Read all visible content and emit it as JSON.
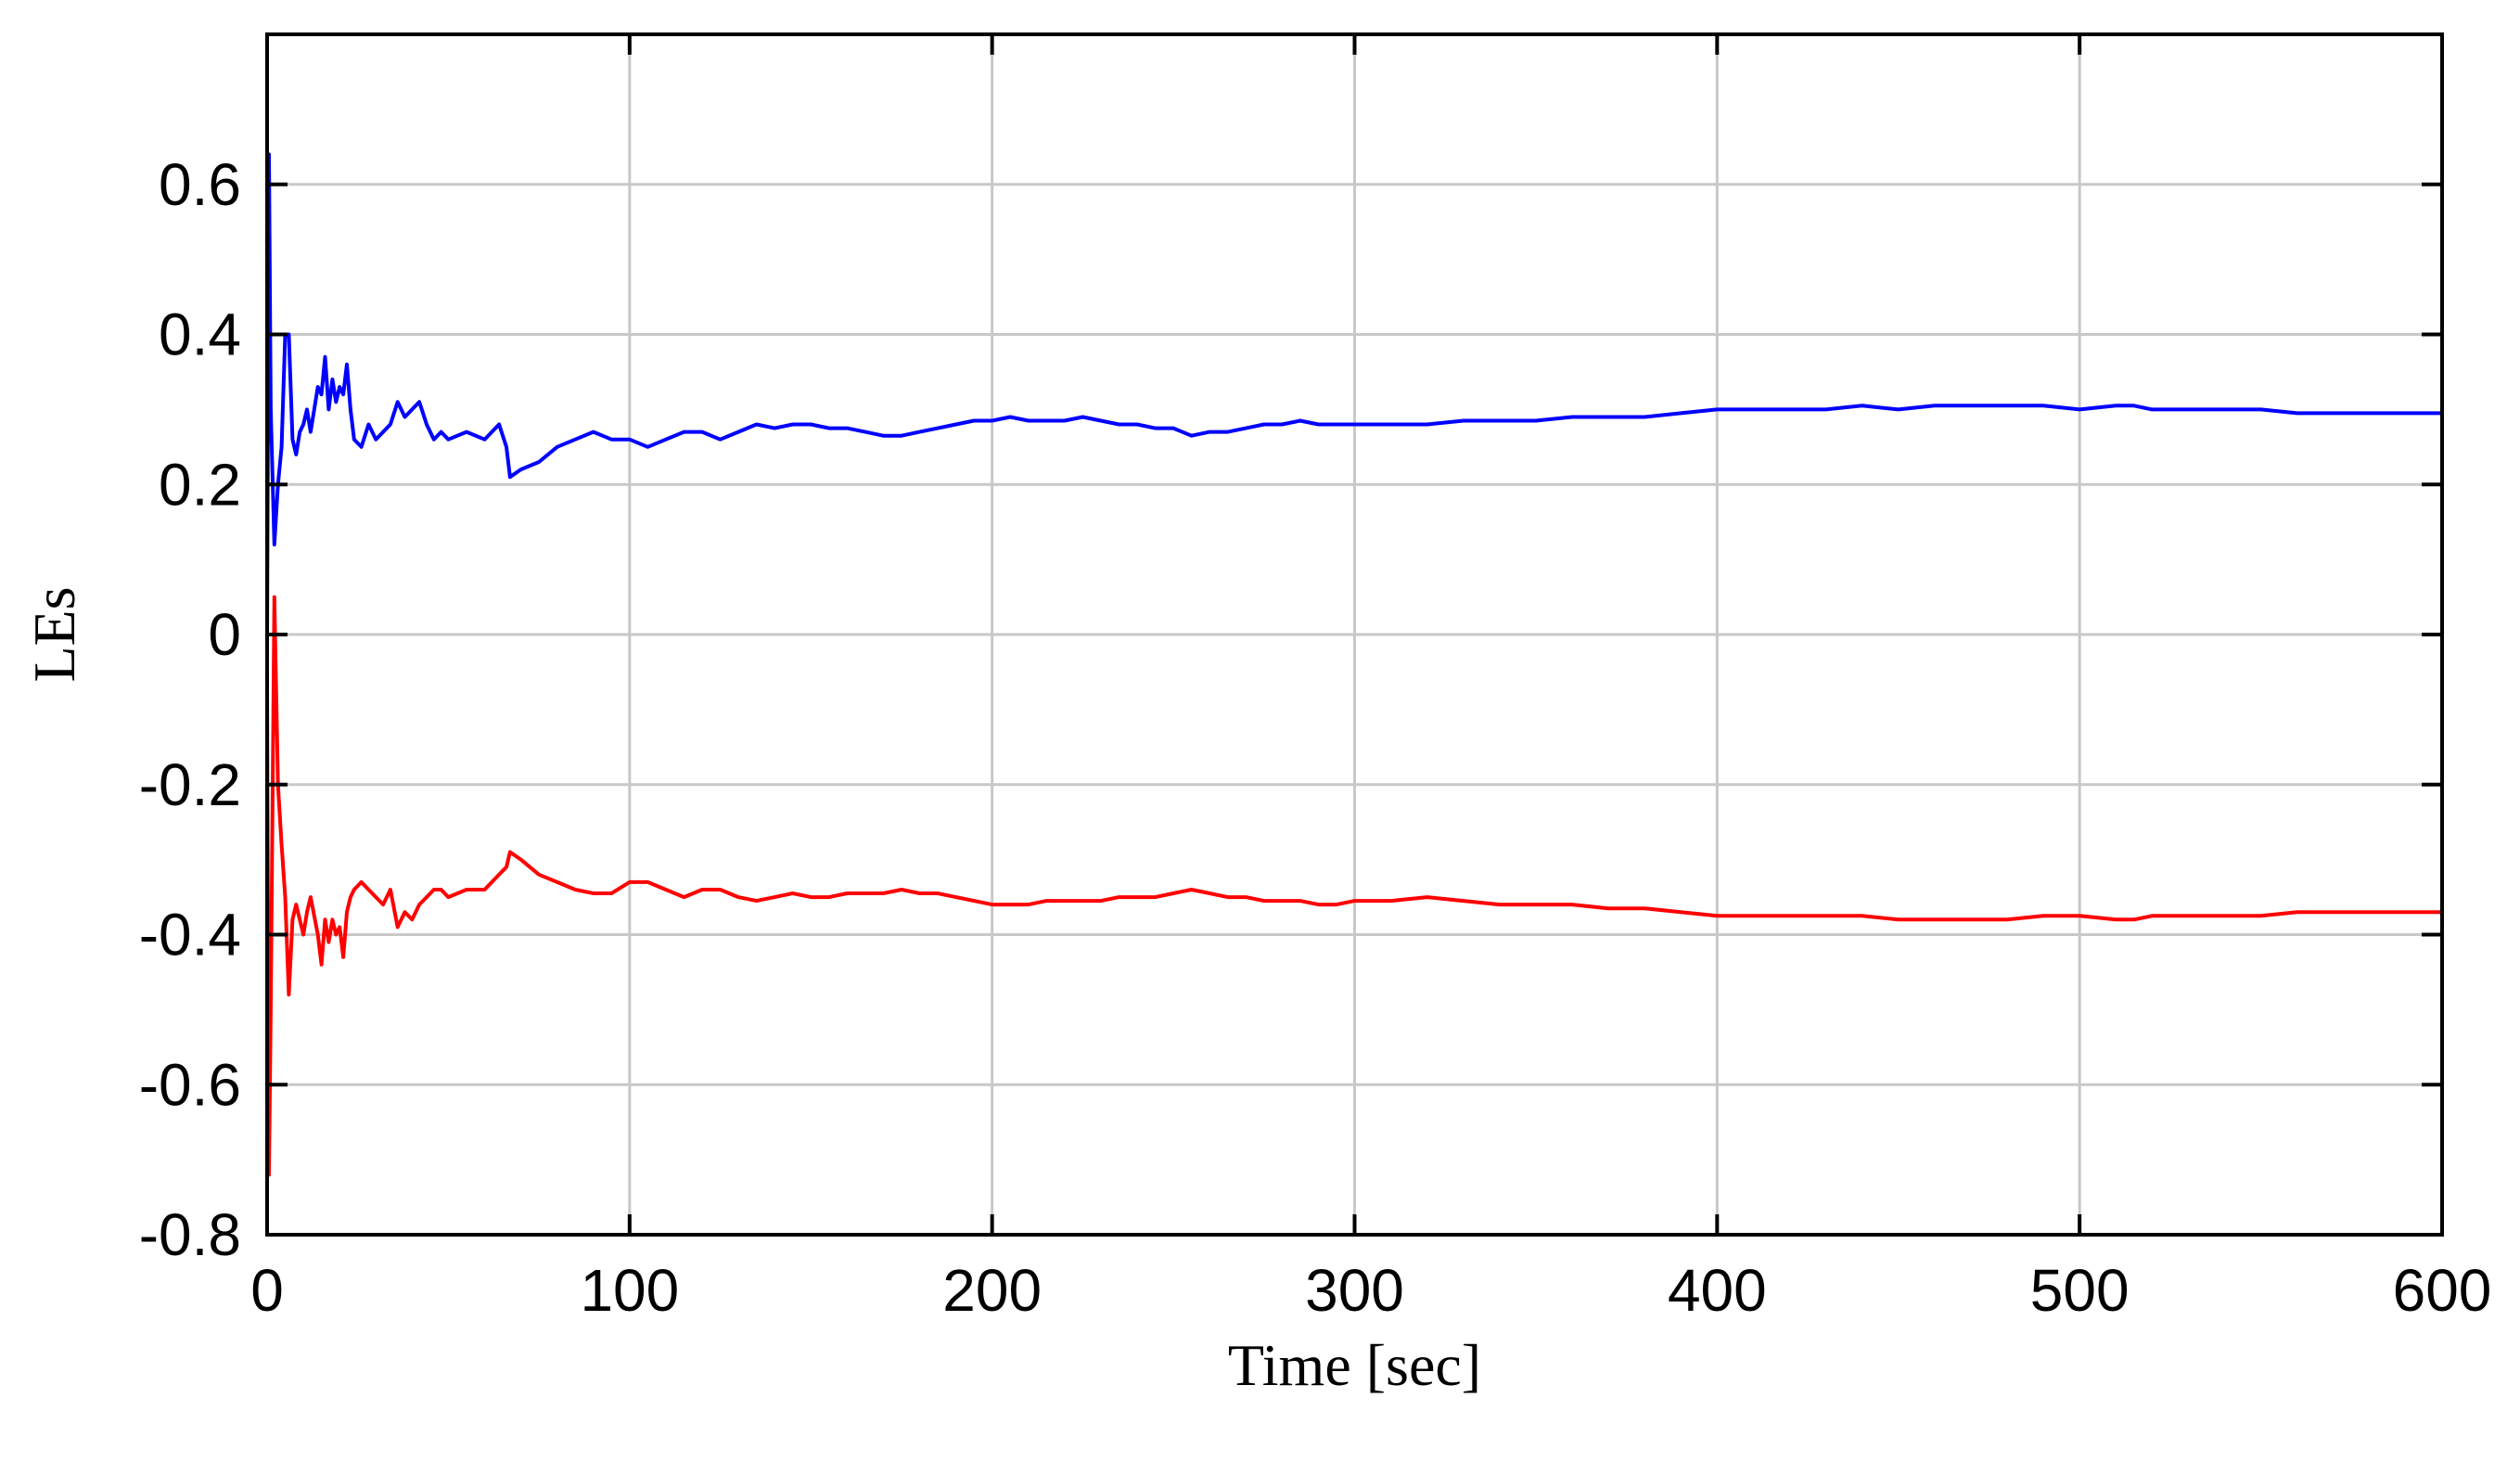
{
  "chart_data": {
    "type": "line",
    "title": "",
    "xlabel": "Time [sec]",
    "ylabel": "LEs",
    "xlim": [
      0,
      600
    ],
    "ylim": [
      -0.8,
      0.8
    ],
    "xticks": [
      0,
      100,
      200,
      300,
      400,
      500,
      600
    ],
    "xtick_labels": [
      "0",
      "100",
      "200",
      "300",
      "400",
      "500",
      "600"
    ],
    "yticks": [
      -0.8,
      -0.6,
      -0.4,
      -0.2,
      0,
      0.2,
      0.4,
      0.6
    ],
    "ytick_labels": [
      "-0.8",
      "-0.6",
      "-0.4",
      "-0.2",
      "0",
      "0.2",
      "0.4",
      "0.6"
    ],
    "grid": true,
    "legend": "none",
    "series": [
      {
        "color": "#0000ff",
        "x": [
          0,
          0.5,
          1,
          2,
          3,
          4,
          5,
          6,
          7,
          8,
          9,
          10,
          11,
          12,
          14,
          15,
          16,
          17,
          18,
          19,
          20,
          21,
          22,
          23,
          24,
          26,
          28,
          30,
          32,
          34,
          36,
          38,
          40,
          42,
          44,
          46,
          48,
          50,
          55,
          60,
          64,
          66,
          67,
          70,
          75,
          80,
          85,
          90,
          95,
          100,
          105,
          110,
          115,
          120,
          125,
          130,
          135,
          140,
          145,
          150,
          155,
          160,
          165,
          170,
          175,
          180,
          185,
          190,
          195,
          200,
          205,
          210,
          215,
          220,
          225,
          230,
          235,
          240,
          245,
          250,
          255,
          260,
          265,
          270,
          275,
          280,
          285,
          290,
          295,
          300,
          310,
          320,
          330,
          340,
          350,
          360,
          370,
          380,
          390,
          400,
          410,
          420,
          430,
          440,
          450,
          460,
          470,
          480,
          490,
          500,
          510,
          515,
          520,
          530,
          540,
          550,
          560,
          570,
          580,
          590,
          600
        ],
        "y": [
          0.0,
          0.64,
          0.3,
          0.12,
          0.2,
          0.25,
          0.4,
          0.4,
          0.26,
          0.24,
          0.27,
          0.28,
          0.3,
          0.27,
          0.33,
          0.32,
          0.37,
          0.3,
          0.34,
          0.31,
          0.33,
          0.32,
          0.36,
          0.3,
          0.26,
          0.25,
          0.28,
          0.26,
          0.27,
          0.28,
          0.31,
          0.29,
          0.3,
          0.31,
          0.28,
          0.26,
          0.27,
          0.26,
          0.27,
          0.26,
          0.28,
          0.25,
          0.21,
          0.22,
          0.23,
          0.25,
          0.26,
          0.27,
          0.26,
          0.26,
          0.25,
          0.26,
          0.27,
          0.27,
          0.26,
          0.27,
          0.28,
          0.275,
          0.28,
          0.28,
          0.275,
          0.275,
          0.27,
          0.265,
          0.265,
          0.27,
          0.275,
          0.28,
          0.285,
          0.285,
          0.29,
          0.285,
          0.285,
          0.285,
          0.29,
          0.285,
          0.28,
          0.28,
          0.275,
          0.275,
          0.265,
          0.27,
          0.27,
          0.275,
          0.28,
          0.28,
          0.285,
          0.28,
          0.28,
          0.28,
          0.28,
          0.28,
          0.285,
          0.285,
          0.285,
          0.29,
          0.29,
          0.29,
          0.295,
          0.3,
          0.3,
          0.3,
          0.3,
          0.305,
          0.3,
          0.305,
          0.305,
          0.305,
          0.305,
          0.3,
          0.305,
          0.305,
          0.3,
          0.3,
          0.3,
          0.3,
          0.295,
          0.295,
          0.295,
          0.295,
          0.295
        ]
      },
      {
        "color": "#ff0000",
        "x": [
          0,
          0.5,
          1,
          2,
          3,
          4,
          5,
          6,
          7,
          8,
          9,
          10,
          11,
          12,
          14,
          15,
          16,
          17,
          18,
          19,
          20,
          21,
          22,
          23,
          24,
          26,
          28,
          30,
          32,
          34,
          36,
          38,
          40,
          42,
          44,
          46,
          48,
          50,
          55,
          60,
          64,
          66,
          67,
          70,
          75,
          80,
          85,
          90,
          95,
          100,
          105,
          110,
          115,
          120,
          125,
          130,
          135,
          140,
          145,
          150,
          155,
          160,
          165,
          170,
          175,
          180,
          185,
          190,
          195,
          200,
          205,
          210,
          215,
          220,
          225,
          230,
          235,
          240,
          245,
          250,
          255,
          260,
          265,
          270,
          275,
          280,
          285,
          290,
          295,
          300,
          310,
          320,
          330,
          340,
          350,
          360,
          370,
          380,
          390,
          400,
          410,
          420,
          430,
          440,
          450,
          460,
          470,
          480,
          490,
          500,
          510,
          515,
          520,
          530,
          540,
          550,
          560,
          570,
          580,
          590,
          600
        ],
        "y": [
          -0.07,
          -0.72,
          -0.5,
          0.05,
          -0.2,
          -0.28,
          -0.35,
          -0.48,
          -0.38,
          -0.36,
          -0.38,
          -0.4,
          -0.37,
          -0.35,
          -0.4,
          -0.44,
          -0.38,
          -0.41,
          -0.38,
          -0.4,
          -0.39,
          -0.43,
          -0.37,
          -0.35,
          -0.34,
          -0.33,
          -0.34,
          -0.35,
          -0.36,
          -0.34,
          -0.39,
          -0.37,
          -0.38,
          -0.36,
          -0.35,
          -0.34,
          -0.34,
          -0.35,
          -0.34,
          -0.34,
          -0.32,
          -0.31,
          -0.29,
          -0.3,
          -0.32,
          -0.33,
          -0.34,
          -0.345,
          -0.345,
          -0.33,
          -0.33,
          -0.34,
          -0.35,
          -0.34,
          -0.34,
          -0.35,
          -0.355,
          -0.35,
          -0.345,
          -0.35,
          -0.35,
          -0.345,
          -0.345,
          -0.345,
          -0.34,
          -0.345,
          -0.345,
          -0.35,
          -0.355,
          -0.36,
          -0.36,
          -0.36,
          -0.355,
          -0.355,
          -0.355,
          -0.355,
          -0.35,
          -0.35,
          -0.35,
          -0.345,
          -0.34,
          -0.345,
          -0.35,
          -0.35,
          -0.355,
          -0.355,
          -0.355,
          -0.36,
          -0.36,
          -0.355,
          -0.355,
          -0.35,
          -0.355,
          -0.36,
          -0.36,
          -0.36,
          -0.365,
          -0.365,
          -0.37,
          -0.375,
          -0.375,
          -0.375,
          -0.375,
          -0.375,
          -0.38,
          -0.38,
          -0.38,
          -0.38,
          -0.375,
          -0.375,
          -0.38,
          -0.38,
          -0.375,
          -0.375,
          -0.375,
          -0.375,
          -0.37,
          -0.37,
          -0.37,
          -0.37,
          -0.37
        ]
      }
    ]
  }
}
